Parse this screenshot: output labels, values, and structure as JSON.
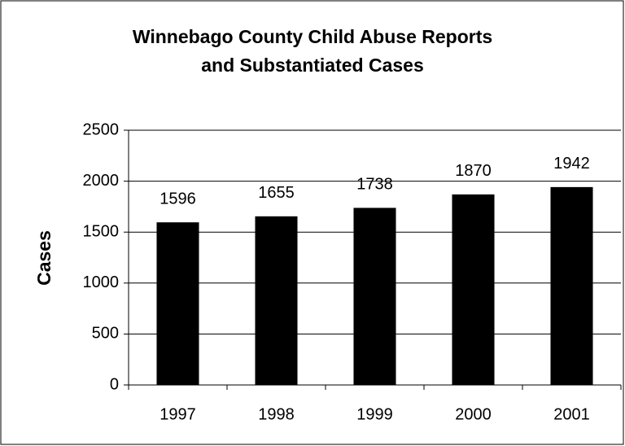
{
  "chart_data": {
    "type": "bar",
    "title": [
      "Winnebago County Child Abuse Reports",
      "and Substantiated Cases"
    ],
    "y_label": "Cases",
    "categories": [
      "1997",
      "1998",
      "1999",
      "2000",
      "2001"
    ],
    "values": [
      1596,
      1655,
      1738,
      1870,
      1942
    ],
    "color": "#000000",
    "ylim": [
      0,
      2500
    ],
    "yticks": [
      0,
      500,
      1000,
      1500,
      2000,
      2500
    ],
    "grid": true
  }
}
